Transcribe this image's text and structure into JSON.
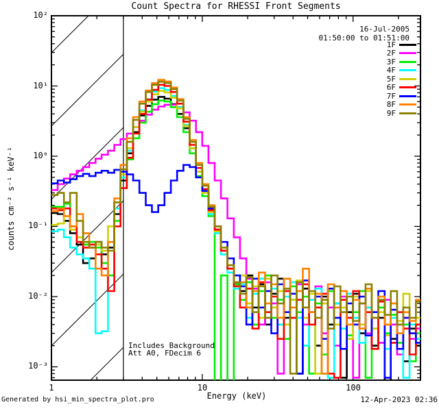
{
  "title": "Count Spectra for RHESSI Front Segments",
  "legend": {
    "date": "16-Jul-2005",
    "time_range": "01:50:00 to 01:51:00"
  },
  "annotation": {
    "line1": "Includes Background",
    "line2": "Att A0, FDecim 6"
  },
  "footer": {
    "left": "Generated by hsi_min_spectra_plot.pro",
    "right": "12-Apr-2023 02:36"
  },
  "chart_data": {
    "type": "line",
    "subtype": "step-histogram-log-log",
    "title": "Count Spectra for RHESSI Front Segments",
    "xlabel": "Energy (keV)",
    "ylabel": "counts cm⁻² s⁻¹ keV⁻¹",
    "xlim": [
      1,
      280
    ],
    "ylim": [
      0.00065,
      100
    ],
    "xscale": "log",
    "yscale": "log",
    "grid": false,
    "legend_position": "top-right",
    "x_tick_values": [
      1,
      10,
      100
    ],
    "x_tick_labels": [
      "1",
      "10",
      "100"
    ],
    "y_tick_values": [
      100,
      10,
      1,
      0.1,
      0.01,
      0.001
    ],
    "y_tick_labels": [
      "10²",
      "10¹",
      "10⁰",
      "10⁻¹",
      "10⁻²",
      "10⁻³"
    ],
    "hatch_region_kev": [
      1,
      3
    ],
    "energy_bin_edges_kev": [
      1.0,
      1.1,
      1.21,
      1.33,
      1.47,
      1.62,
      1.78,
      1.96,
      2.15,
      2.37,
      2.61,
      2.87,
      3.16,
      3.48,
      3.83,
      4.22,
      4.64,
      5.11,
      5.62,
      6.19,
      6.81,
      7.5,
      8.25,
      9.09,
      10.0,
      11.0,
      12.1,
      13.3,
      14.7,
      16.2,
      17.8,
      19.6,
      21.5,
      23.7,
      26.1,
      28.7,
      31.6,
      34.8,
      38.3,
      42.2,
      46.4,
      51.1,
      56.2,
      61.9,
      68.1,
      75.0,
      82.5,
      90.9,
      100,
      110,
      121,
      133,
      147,
      162,
      178,
      196,
      215,
      237,
      261,
      287,
      316
    ],
    "series": [
      {
        "name": "1F",
        "color": "#000000",
        "values": [
          0.155,
          0.15,
          0.12,
          0.08,
          0.055,
          0.03,
          0.035,
          0.06,
          0.04,
          0.05,
          0.15,
          0.45,
          1.1,
          2.2,
          3.8,
          5.2,
          6.4,
          7.0,
          6.6,
          5.5,
          4.0,
          2.5,
          1.3,
          0.6,
          0.32,
          0.17,
          0.09,
          0.045,
          0.025,
          0.015,
          0.012,
          0.02,
          0.007,
          0.015,
          0.004,
          0.011,
          0.018,
          0.005,
          0.009,
          0.0008,
          0.013,
          0.006,
          0.002,
          0.01,
          0.004,
          0.008,
          0.0007,
          0.006,
          0.011,
          0.003,
          0.007,
          0.002,
          0.005,
          0.0006,
          0.0025,
          0.004,
          0.0012,
          0.0035,
          0.002,
          0.0028
        ]
      },
      {
        "name": "2F",
        "color": "#FF00FF",
        "values": [
          0.33,
          0.4,
          0.48,
          0.55,
          0.62,
          0.7,
          0.8,
          0.92,
          1.05,
          1.2,
          1.45,
          1.75,
          2.1,
          2.6,
          3.2,
          3.9,
          4.6,
          5.1,
          5.4,
          5.4,
          5.0,
          4.2,
          3.2,
          2.2,
          1.4,
          0.8,
          0.45,
          0.25,
          0.13,
          0.07,
          0.035,
          0.018,
          0.013,
          0.004,
          0.016,
          0.008,
          0.0008,
          0.012,
          0.005,
          0.015,
          0.004,
          0.009,
          0.014,
          0.003,
          0.007,
          0.002,
          0.01,
          0.005,
          0.0007,
          0.008,
          0.003,
          0.006,
          0.0022,
          0.009,
          0.004,
          0.0015,
          0.005,
          0.0025,
          0.0035,
          0.0018
        ]
      },
      {
        "name": "3F",
        "color": "#00EE00",
        "values": [
          0.19,
          0.19,
          0.21,
          0.1,
          0.06,
          0.055,
          0.06,
          0.05,
          0.03,
          0.02,
          0.12,
          0.35,
          0.9,
          1.8,
          3.0,
          4.3,
          5.5,
          6.2,
          6.0,
          5.0,
          3.6,
          2.2,
          1.1,
          0.52,
          0.27,
          0.14,
          0.0005,
          0.02,
          0.0005,
          0.015,
          0.009,
          0.016,
          0.004,
          0.012,
          0.02,
          0.005,
          0.009,
          0.0025,
          0.014,
          0.006,
          0.01,
          0.0008,
          0.008,
          0.0015,
          0.012,
          0.005,
          0.009,
          0.0028,
          0.006,
          0.012,
          0.0007,
          0.0018,
          0.007,
          0.003,
          0.0055,
          0.0022,
          0.004,
          0.0012,
          0.003,
          0.002
        ]
      },
      {
        "name": "4F",
        "color": "#00FFFF",
        "values": [
          0.085,
          0.09,
          0.07,
          0.05,
          0.04,
          0.035,
          0.025,
          0.003,
          0.0032,
          0.06,
          0.18,
          0.5,
          1.2,
          2.6,
          4.5,
          6.5,
          8.3,
          9.3,
          8.8,
          7.2,
          5.0,
          2.8,
          1.3,
          0.6,
          0.3,
          0.15,
          0.08,
          0.04,
          0.022,
          0.013,
          0.015,
          0.005,
          0.011,
          0.018,
          0.006,
          0.013,
          0.004,
          0.01,
          0.016,
          0.005,
          0.002,
          0.009,
          0.013,
          0.0008,
          0.0007,
          0.008,
          0.0035,
          0.011,
          0.005,
          0.0022,
          0.007,
          0.0035,
          0.009,
          0.0018,
          0.005,
          0.003,
          0.0007,
          0.004,
          0.0025,
          0.0015
        ]
      },
      {
        "name": "5F",
        "color": "#CFCF00",
        "values": [
          0.105,
          0.11,
          0.14,
          0.09,
          0.07,
          0.06,
          0.05,
          0.055,
          0.045,
          0.1,
          0.22,
          0.55,
          1.3,
          2.6,
          4.3,
          6.0,
          7.6,
          8.5,
          8.1,
          6.8,
          4.8,
          2.7,
          1.3,
          0.6,
          0.3,
          0.16,
          0.085,
          0.045,
          0.025,
          0.014,
          0.02,
          0.008,
          0.014,
          0.005,
          0.018,
          0.007,
          0.012,
          0.004,
          0.009,
          0.017,
          0.005,
          0.011,
          0.0008,
          0.008,
          0.013,
          0.004,
          0.007,
          0.0025,
          0.01,
          0.004,
          0.012,
          0.0035,
          0.006,
          0.0028,
          0.008,
          0.0045,
          0.011,
          0.003,
          0.005,
          0.0025
        ]
      },
      {
        "name": "6F",
        "color": "#FF0000",
        "values": [
          0.18,
          0.17,
          0.18,
          0.1,
          0.06,
          0.05,
          0.055,
          0.04,
          0.025,
          0.012,
          0.1,
          0.35,
          0.95,
          2.1,
          4.0,
          6.4,
          8.8,
          10.4,
          10.0,
          8.2,
          5.6,
          3.1,
          1.45,
          0.68,
          0.34,
          0.17,
          0.09,
          0.045,
          0.025,
          0.014,
          0.007,
          0.013,
          0.0035,
          0.016,
          0.006,
          0.01,
          0.0025,
          0.012,
          0.005,
          0.009,
          0.015,
          0.004,
          0.007,
          0.011,
          0.0008,
          0.0007,
          0.009,
          0.005,
          0.012,
          0.0035,
          0.006,
          0.0018,
          0.0085,
          0.004,
          0.0022,
          0.006,
          0.0035,
          0.0015,
          0.004,
          0.0028
        ]
      },
      {
        "name": "7F",
        "color": "#0000FF",
        "values": [
          0.41,
          0.45,
          0.42,
          0.47,
          0.52,
          0.56,
          0.52,
          0.58,
          0.62,
          0.58,
          0.64,
          0.6,
          0.55,
          0.45,
          0.3,
          0.2,
          0.16,
          0.2,
          0.3,
          0.45,
          0.62,
          0.75,
          0.7,
          0.5,
          0.32,
          0.18,
          0.1,
          0.06,
          0.035,
          0.02,
          0.014,
          0.004,
          0.018,
          0.007,
          0.012,
          0.003,
          0.015,
          0.006,
          0.011,
          0.0008,
          0.017,
          0.006,
          0.01,
          0.0025,
          0.013,
          0.005,
          0.0018,
          0.008,
          0.004,
          0.01,
          0.0028,
          0.006,
          0.012,
          0.0007,
          0.0065,
          0.0018,
          0.005,
          0.003,
          0.0022,
          0.0006
        ]
      },
      {
        "name": "8F",
        "color": "#FF8000",
        "values": [
          0.165,
          0.18,
          0.14,
          0.1,
          0.15,
          0.08,
          0.05,
          0.025,
          0.02,
          0.06,
          0.25,
          0.75,
          1.8,
          3.6,
          6.0,
          8.6,
          11.0,
          12.2,
          11.6,
          9.5,
          6.5,
          3.6,
          1.7,
          0.8,
          0.4,
          0.2,
          0.1,
          0.05,
          0.028,
          0.016,
          0.016,
          0.007,
          0.012,
          0.022,
          0.008,
          0.015,
          0.005,
          0.018,
          0.007,
          0.012,
          0.025,
          0.006,
          0.011,
          0.0008,
          0.015,
          0.007,
          0.012,
          0.004,
          0.009,
          0.0035,
          0.013,
          0.005,
          0.01,
          0.004,
          0.008,
          0.003,
          0.006,
          0.0045,
          0.009,
          0.005
        ]
      },
      {
        "name": "9F",
        "color": "#8B8000",
        "values": [
          0.28,
          0.3,
          0.22,
          0.3,
          0.12,
          0.06,
          0.05,
          0.06,
          0.05,
          0.045,
          0.22,
          0.65,
          1.6,
          3.3,
          5.6,
          8.2,
          10.4,
          11.5,
          11.0,
          9.0,
          6.2,
          3.4,
          1.6,
          0.75,
          0.38,
          0.19,
          0.1,
          0.05,
          0.028,
          0.016,
          0.011,
          0.019,
          0.006,
          0.014,
          0.005,
          0.02,
          0.008,
          0.013,
          0.0008,
          0.016,
          0.007,
          0.012,
          0.005,
          0.009,
          0.0035,
          0.014,
          0.006,
          0.01,
          0.0045,
          0.008,
          0.015,
          0.005,
          0.009,
          0.0055,
          0.012,
          0.004,
          0.007,
          0.005,
          0.0085,
          0.004
        ]
      }
    ]
  }
}
